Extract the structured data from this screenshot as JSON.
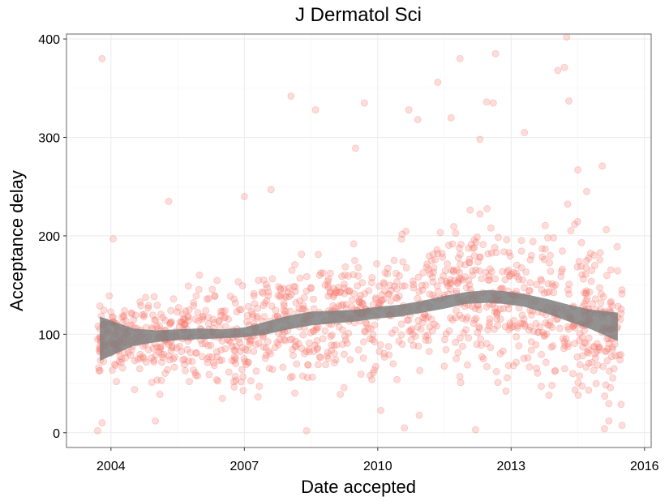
{
  "chart_data": {
    "type": "scatter",
    "title": "J Dermatol Sci",
    "xlabel": "Date accepted",
    "ylabel": "Acceptance delay",
    "x_ticks": [
      "2004",
      "2007",
      "2010",
      "2013",
      "2016"
    ],
    "y_ticks": [
      0,
      100,
      200,
      300,
      400
    ],
    "xlim": [
      2003.0,
      2016.15
    ],
    "ylim": [
      -15,
      405
    ],
    "grid": true,
    "point_color": "#f8766d",
    "smooth_band_color": "#7f7f7f",
    "point_count_approx": 1300,
    "smooth": {
      "x": [
        2003.75,
        2004.5,
        2005.0,
        2005.5,
        2006.0,
        2006.5,
        2007.0,
        2007.5,
        2008.0,
        2008.5,
        2009.0,
        2009.5,
        2010.0,
        2010.5,
        2011.0,
        2011.5,
        2012.0,
        2012.5,
        2012.8,
        2013.3,
        2013.8,
        2014.3,
        2014.8,
        2015.4
      ],
      "lower": [
        73,
        88,
        92,
        94,
        95,
        96,
        97,
        100,
        105,
        109,
        111,
        113,
        116,
        118,
        122,
        126,
        131,
        132,
        131,
        128,
        121,
        113,
        105,
        93
      ],
      "upper": [
        118,
        106,
        104,
        105,
        106,
        105,
        107,
        113,
        119,
        123,
        124,
        125,
        128,
        130,
        134,
        139,
        143,
        145,
        144,
        141,
        136,
        130,
        125,
        122
      ]
    },
    "outliers": [
      [
        2003.8,
        380
      ],
      [
        2004.05,
        197
      ],
      [
        2005.3,
        235
      ],
      [
        2007.0,
        240
      ],
      [
        2007.6,
        247
      ],
      [
        2008.05,
        342
      ],
      [
        2008.6,
        328
      ],
      [
        2009.5,
        289
      ],
      [
        2009.7,
        335
      ],
      [
        2010.7,
        328
      ],
      [
        2010.9,
        318
      ],
      [
        2011.35,
        356
      ],
      [
        2011.65,
        320
      ],
      [
        2011.85,
        380
      ],
      [
        2012.3,
        298
      ],
      [
        2012.45,
        336
      ],
      [
        2012.6,
        335
      ],
      [
        2012.65,
        385
      ],
      [
        2013.3,
        305
      ],
      [
        2014.05,
        368
      ],
      [
        2014.2,
        371
      ],
      [
        2014.25,
        402
      ],
      [
        2014.3,
        337
      ],
      [
        2014.5,
        267
      ],
      [
        2014.7,
        245
      ],
      [
        2015.05,
        271
      ],
      [
        2003.7,
        2
      ],
      [
        2003.8,
        10
      ],
      [
        2005.0,
        12
      ],
      [
        2008.4,
        2
      ],
      [
        2010.6,
        5
      ],
      [
        2012.2,
        3
      ],
      [
        2015.1,
        4
      ],
      [
        2015.2,
        12
      ]
    ]
  }
}
